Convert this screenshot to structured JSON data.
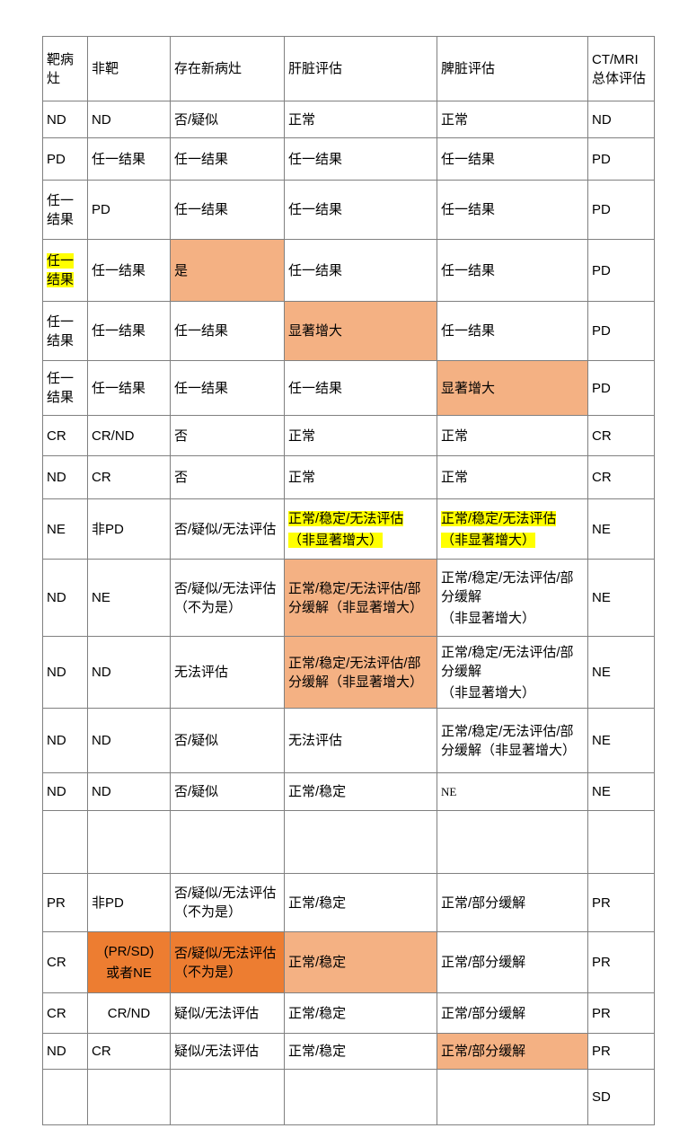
{
  "colors": {
    "highlight_yellow": "#FFFF00",
    "cell_orange_light": "#F4B183",
    "cell_orange_dark": "#ED7D31",
    "border_gray": "#808080"
  },
  "table": {
    "headers": [
      "靶病灶",
      "非靶",
      "存在新病灶",
      "肝脏评估",
      "脾脏评估",
      "CT/MRI总体评估"
    ],
    "rows": [
      [
        "ND",
        "ND",
        "否/疑似",
        "正常",
        "正常",
        "ND"
      ],
      [
        "PD",
        "任一结果",
        "任一结果",
        "任一结果",
        "任一结果",
        "PD"
      ],
      [
        "任一结果",
        "PD",
        "任一结果",
        "任一结果",
        "任一结果",
        "PD"
      ],
      [
        {
          "text": "任一结果",
          "hlwrap": true
        },
        "任一结果",
        {
          "text": "是",
          "bg": "light"
        },
        "任一结果",
        "任一结果",
        "PD"
      ],
      [
        "任一结果",
        "任一结果",
        "任一结果",
        {
          "text": "显著增大",
          "bg": "light"
        },
        "任一结果",
        "PD"
      ],
      [
        "任一结果",
        "任一结果",
        "任一结果",
        "任一结果",
        {
          "text": "显著增大",
          "bg": "light"
        },
        "PD"
      ],
      [
        "CR",
        "CR/ND",
        "否",
        "正常",
        "正常",
        "CR"
      ],
      [
        "ND",
        "CR",
        "否",
        "正常",
        "正常",
        "CR"
      ],
      [
        "NE",
        "非PD",
        "否/疑似/无法评估",
        {
          "lines": [
            "正常/稳定/无法评估",
            "（非显著增大）"
          ],
          "hl": true
        },
        {
          "lines": [
            "正常/稳定/无法评估",
            "（非显著增大）"
          ],
          "hl": true
        },
        "NE"
      ],
      [
        "ND",
        "NE",
        "否/疑似/无法评估（不为是）",
        {
          "text": "正常/稳定/无法评估/部分缓解（非显著增大）",
          "bg": "light"
        },
        {
          "lines": [
            "正常/稳定/无法评估/部分缓解",
            "（非显著增大）"
          ]
        },
        "NE"
      ],
      [
        "ND",
        "ND",
        "无法评估",
        {
          "text": "正常/稳定/无法评估/部分缓解（非显著增大）",
          "bg": "light"
        },
        {
          "lines": [
            "正常/稳定/无法评估/部分缓解",
            "（非显著增大）"
          ]
        },
        "NE"
      ],
      [
        "ND",
        "ND",
        "否/疑似",
        "无法评估",
        "正常/稳定/无法评估/部分缓解（非显著增大）",
        "NE"
      ],
      [
        "ND",
        "ND",
        "否/疑似",
        "正常/稳定",
        {
          "text": "NE",
          "cls": "serif"
        },
        "NE"
      ],
      [
        "",
        "",
        "",
        "",
        "",
        ""
      ],
      [
        "PR",
        "非PD",
        "否/疑似/无法评估（不为是）",
        "正常/稳定",
        "正常/部分缓解",
        "PR"
      ],
      [
        "CR",
        {
          "lines": [
            "(PR/SD)",
            "或者NE"
          ],
          "bg": "dark",
          "cls": "center"
        },
        {
          "text": "否/疑似/无法评估（不为是）",
          "bg": "dark"
        },
        {
          "text": "正常/稳定",
          "bg": "light"
        },
        "正常/部分缓解",
        "PR"
      ],
      [
        "CR",
        {
          "text": "CR/ND",
          "cls": "center"
        },
        "疑似/无法评估",
        "正常/稳定",
        "正常/部分缓解",
        "PR"
      ],
      [
        "ND",
        "CR",
        "疑似/无法评估",
        "正常/稳定",
        {
          "text": "正常/部分缓解",
          "bg": "light"
        },
        "PR"
      ],
      [
        "",
        "",
        "",
        "",
        "",
        "SD"
      ]
    ]
  }
}
